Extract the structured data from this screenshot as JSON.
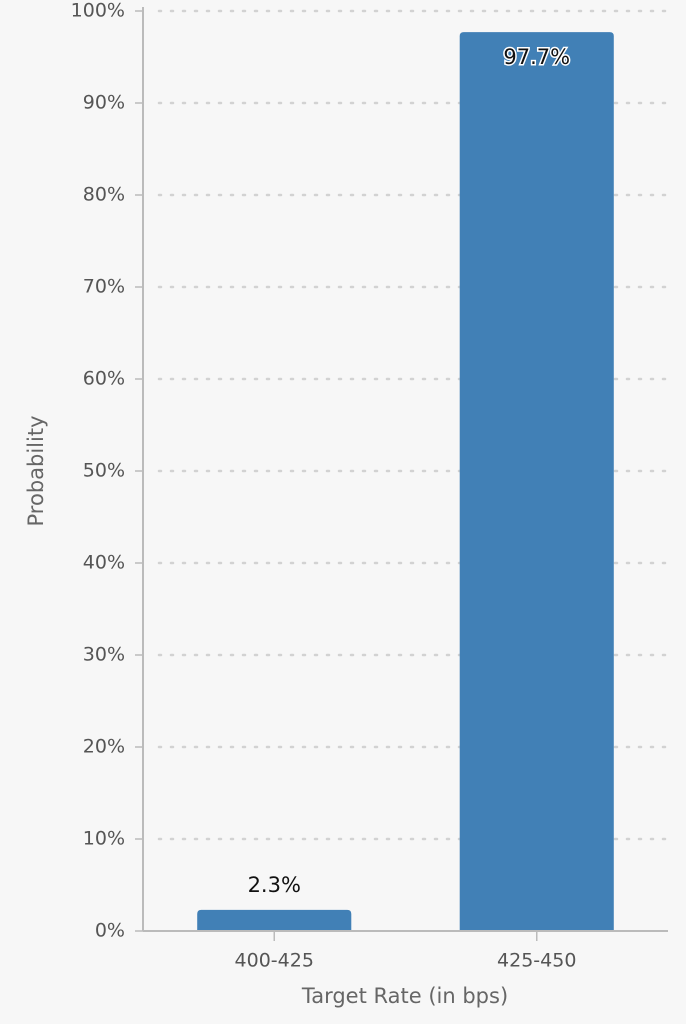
{
  "chart_data": {
    "type": "bar",
    "x_label": "Target Rate (in bps)",
    "y_label": "Probability",
    "categories": [
      "400-425",
      "425-450"
    ],
    "values": [
      2.3,
      97.7
    ],
    "value_labels": [
      "2.3%",
      "97.7%"
    ],
    "color": "#4180b6",
    "ylim": [
      0,
      100
    ],
    "yticks": [
      {
        "value": 0,
        "label": "0%"
      },
      {
        "value": 10,
        "label": "10%"
      },
      {
        "value": 20,
        "label": "20%"
      },
      {
        "value": 30,
        "label": "30%"
      },
      {
        "value": 40,
        "label": "40%"
      },
      {
        "value": 50,
        "label": "50%"
      },
      {
        "value": 60,
        "label": "60%"
      },
      {
        "value": 70,
        "label": "70%"
      },
      {
        "value": 80,
        "label": "80%"
      },
      {
        "value": 90,
        "label": "90%"
      },
      {
        "value": 100,
        "label": "100%"
      }
    ],
    "grid": true
  }
}
